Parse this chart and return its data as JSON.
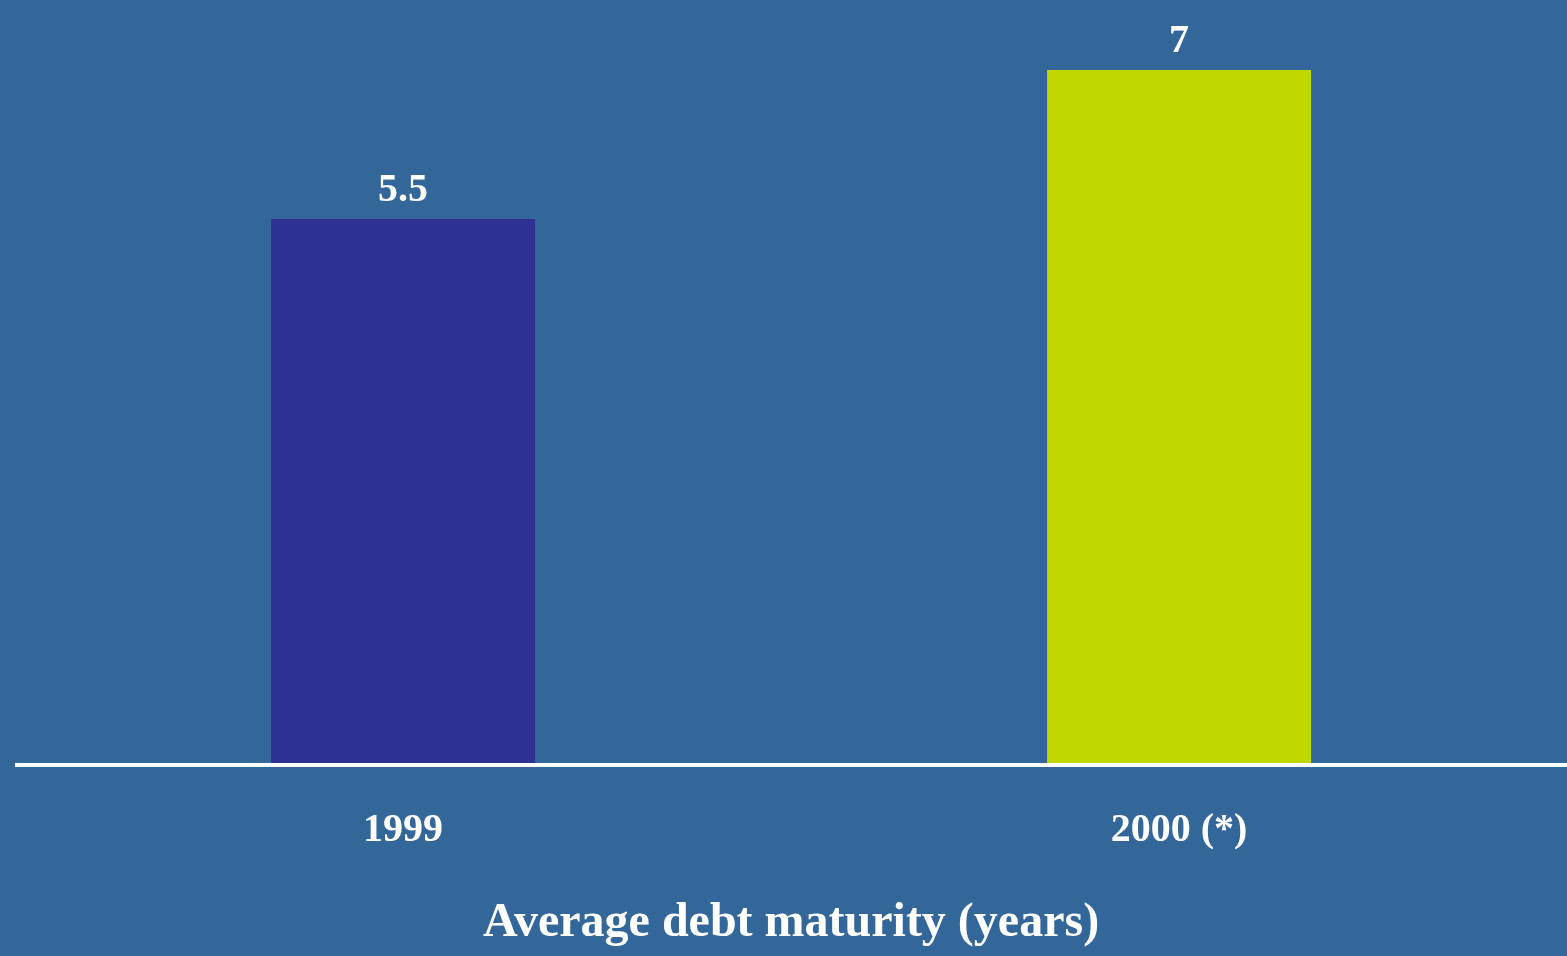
{
  "chart_data": {
    "type": "bar",
    "xlabel": "Average debt maturity (years)",
    "categories": [
      "1999",
      "2000 (*)"
    ],
    "values": [
      5.5,
      7
    ],
    "colors": [
      "#2e3192",
      "#bfd900"
    ],
    "data_labels": true,
    "tick_labels": "x"
  }
}
